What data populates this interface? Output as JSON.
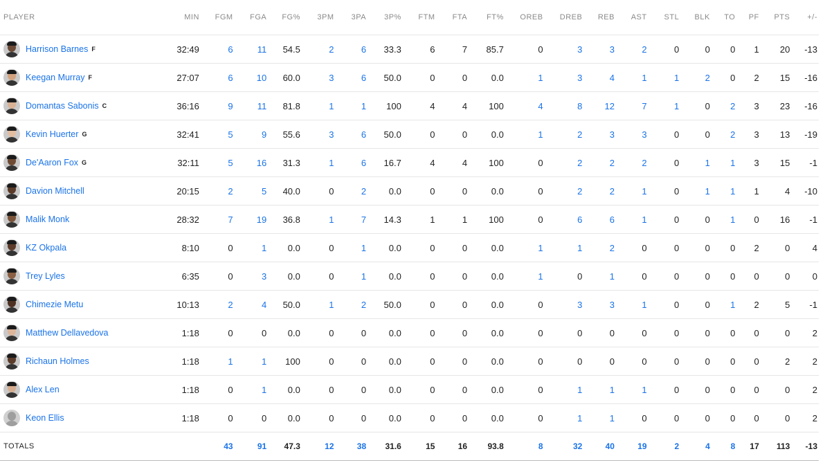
{
  "columns": [
    "PLAYER",
    "MIN",
    "FGM",
    "FGA",
    "FG%",
    "3PM",
    "3PA",
    "3P%",
    "FTM",
    "FTA",
    "FT%",
    "OREB",
    "DREB",
    "REB",
    "AST",
    "STL",
    "BLK",
    "TO",
    "PF",
    "PTS",
    "+/-"
  ],
  "players": [
    {
      "name": "Harrison Barnes",
      "pos": "F",
      "skin": "#6b4a36",
      "stats": [
        "32:49",
        "6",
        "11",
        "54.5",
        "2",
        "6",
        "33.3",
        "6",
        "7",
        "85.7",
        "0",
        "3",
        "3",
        "2",
        "0",
        "0",
        "0",
        "1",
        "20",
        "-13"
      ]
    },
    {
      "name": "Keegan Murray",
      "pos": "F",
      "skin": "#d3a27f",
      "stats": [
        "27:07",
        "6",
        "10",
        "60.0",
        "3",
        "6",
        "50.0",
        "0",
        "0",
        "0.0",
        "1",
        "3",
        "4",
        "1",
        "1",
        "2",
        "0",
        "2",
        "15",
        "-16"
      ]
    },
    {
      "name": "Domantas Sabonis",
      "pos": "C",
      "skin": "#d9b194",
      "stats": [
        "36:16",
        "9",
        "11",
        "81.8",
        "1",
        "1",
        "100",
        "4",
        "4",
        "100",
        "4",
        "8",
        "12",
        "7",
        "1",
        "0",
        "2",
        "3",
        "23",
        "-16"
      ]
    },
    {
      "name": "Kevin Huerter",
      "pos": "G",
      "skin": "#e2bda0",
      "stats": [
        "32:41",
        "5",
        "9",
        "55.6",
        "3",
        "6",
        "50.0",
        "0",
        "0",
        "0.0",
        "1",
        "2",
        "3",
        "3",
        "0",
        "0",
        "2",
        "3",
        "13",
        "-19"
      ]
    },
    {
      "name": "De'Aaron Fox",
      "pos": "G",
      "skin": "#6e4a34",
      "stats": [
        "32:11",
        "5",
        "16",
        "31.3",
        "1",
        "6",
        "16.7",
        "4",
        "4",
        "100",
        "0",
        "2",
        "2",
        "2",
        "0",
        "1",
        "1",
        "3",
        "15",
        "-1"
      ]
    },
    {
      "name": "Davion Mitchell",
      "pos": "",
      "skin": "#5a3a28",
      "stats": [
        "20:15",
        "2",
        "5",
        "40.0",
        "0",
        "2",
        "0.0",
        "0",
        "0",
        "0.0",
        "0",
        "2",
        "2",
        "1",
        "0",
        "1",
        "1",
        "1",
        "4",
        "-10"
      ]
    },
    {
      "name": "Malik Monk",
      "pos": "",
      "skin": "#7a5338",
      "stats": [
        "28:32",
        "7",
        "19",
        "36.8",
        "1",
        "7",
        "14.3",
        "1",
        "1",
        "100",
        "0",
        "6",
        "6",
        "1",
        "0",
        "0",
        "1",
        "0",
        "16",
        "-1"
      ]
    },
    {
      "name": "KZ Okpala",
      "pos": "",
      "skin": "#5c3b29",
      "stats": [
        "8:10",
        "0",
        "1",
        "0.0",
        "0",
        "1",
        "0.0",
        "0",
        "0",
        "0.0",
        "1",
        "1",
        "2",
        "0",
        "0",
        "0",
        "0",
        "2",
        "0",
        "4"
      ]
    },
    {
      "name": "Trey Lyles",
      "pos": "",
      "skin": "#8a5f43",
      "stats": [
        "6:35",
        "0",
        "3",
        "0.0",
        "0",
        "1",
        "0.0",
        "0",
        "0",
        "0.0",
        "1",
        "0",
        "1",
        "0",
        "0",
        "0",
        "0",
        "0",
        "0",
        "0"
      ]
    },
    {
      "name": "Chimezie Metu",
      "pos": "",
      "skin": "#4e3223",
      "stats": [
        "10:13",
        "2",
        "4",
        "50.0",
        "1",
        "2",
        "50.0",
        "0",
        "0",
        "0.0",
        "0",
        "3",
        "3",
        "1",
        "0",
        "0",
        "1",
        "2",
        "5",
        "-1"
      ]
    },
    {
      "name": "Matthew Dellavedova",
      "pos": "",
      "skin": "#dcb59a",
      "stats": [
        "1:18",
        "0",
        "0",
        "0.0",
        "0",
        "0",
        "0.0",
        "0",
        "0",
        "0.0",
        "0",
        "0",
        "0",
        "0",
        "0",
        "0",
        "0",
        "0",
        "0",
        "2"
      ]
    },
    {
      "name": "Richaun Holmes",
      "pos": "",
      "skin": "#5b3b2a",
      "stats": [
        "1:18",
        "1",
        "1",
        "100",
        "0",
        "0",
        "0.0",
        "0",
        "0",
        "0.0",
        "0",
        "0",
        "0",
        "0",
        "0",
        "0",
        "0",
        "0",
        "2",
        "2"
      ]
    },
    {
      "name": "Alex Len",
      "pos": "",
      "skin": "#d6ad8f",
      "stats": [
        "1:18",
        "0",
        "1",
        "0.0",
        "0",
        "0",
        "0.0",
        "0",
        "0",
        "0.0",
        "0",
        "1",
        "1",
        "1",
        "0",
        "0",
        "0",
        "0",
        "0",
        "2"
      ]
    },
    {
      "name": "Keon Ellis",
      "pos": "",
      "skin": "",
      "placeholder": true,
      "stats": [
        "1:18",
        "0",
        "0",
        "0.0",
        "0",
        "0",
        "0.0",
        "0",
        "0",
        "0.0",
        "0",
        "1",
        "1",
        "0",
        "0",
        "0",
        "0",
        "0",
        "0",
        "2"
      ]
    }
  ],
  "totals": {
    "label": "TOTALS",
    "stats": [
      "",
      "43",
      "91",
      "47.3",
      "12",
      "38",
      "31.6",
      "15",
      "16",
      "93.8",
      "8",
      "32",
      "40",
      "19",
      "2",
      "4",
      "8",
      "17",
      "113",
      "-13"
    ]
  },
  "link_columns": [
    2,
    3,
    5,
    6,
    11,
    12,
    13,
    14,
    15,
    16,
    17
  ],
  "colors": {
    "link": "#1a73e8",
    "header": "#8a8a8a",
    "border": "#e6e6e6"
  }
}
